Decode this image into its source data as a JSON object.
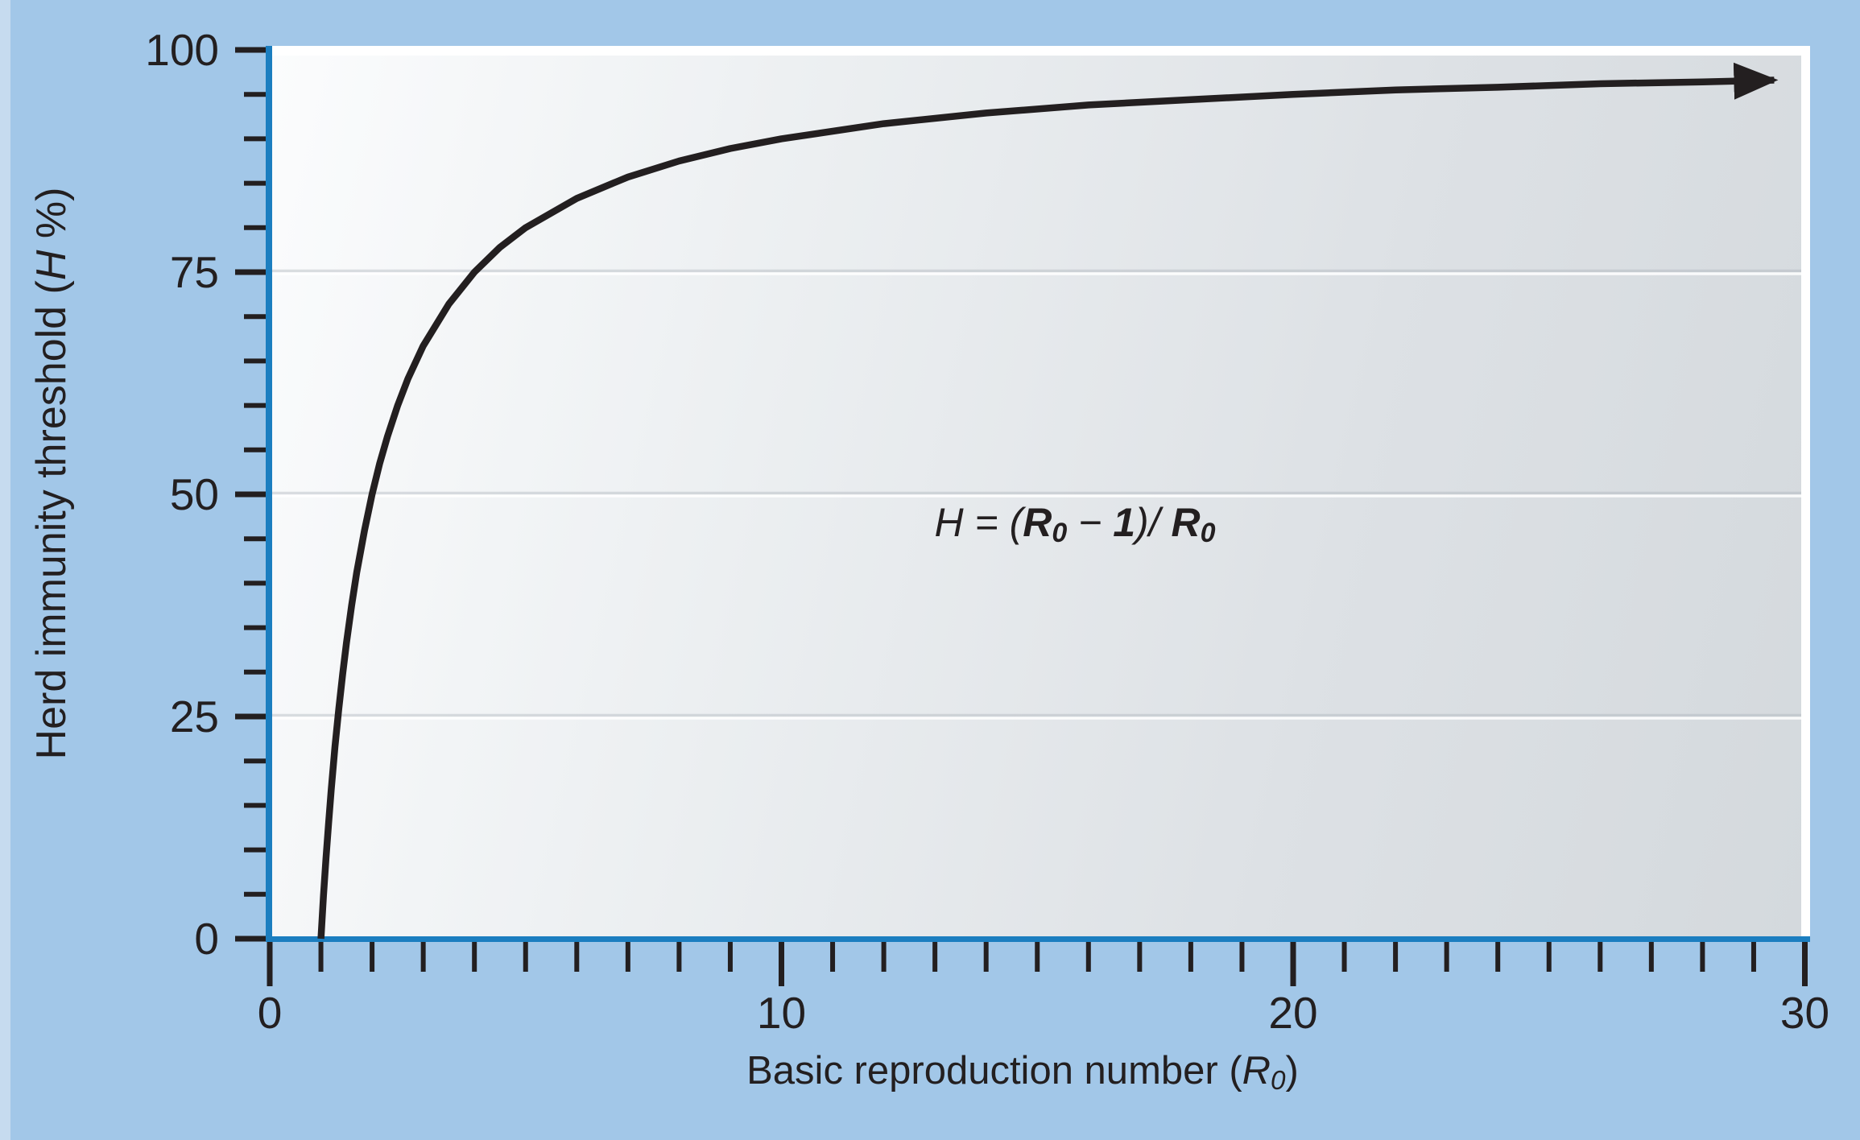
{
  "figure": {
    "background_color": "#a2c7e8",
    "left_edge_color": "#c6dbef",
    "axis_color": "#1b7ec0",
    "ink_color": "#231f20",
    "panel_frame_color": "#ffffff",
    "panel_gradient": [
      "#fbfcfd",
      "#edf0f2",
      "#dde1e5",
      "#d4d9dd"
    ]
  },
  "labels": {
    "y_title_prefix": "Herd immunity threshold (",
    "y_title_var": "H",
    "y_title_suffix": " %)",
    "x_title_prefix": "Basic reproduction number (",
    "x_title_var": "R",
    "x_title_sub": "0",
    "x_title_suffix": ")",
    "formula_h": "H",
    "formula_eq": " = (",
    "formula_r1": "R",
    "formula_sub1": "0",
    "formula_minus": " − ",
    "formula_one": "1",
    "formula_close": ")/ ",
    "formula_r2": "R",
    "formula_sub2": "0"
  },
  "chart_data": {
    "type": "line",
    "title": "",
    "xlabel": "Basic reproduction number (R0)",
    "ylabel": "Herd immunity threshold (H %)",
    "annotation": "H = (R0 − 1)/R0",
    "xlim": [
      0,
      30
    ],
    "ylim": [
      0,
      100
    ],
    "x_major_ticks": [
      0,
      10,
      20,
      30
    ],
    "x_minor_tick_step": 1,
    "y_major_ticks": [
      0,
      25,
      50,
      75,
      100
    ],
    "y_minor_tick_step": 5,
    "gridlines_y": [
      25,
      50,
      75
    ],
    "grid_on": true,
    "legend": "none",
    "series": [
      {
        "name": "Herd immunity threshold H = 100 × (R0 − 1)/R0",
        "arrow_end": true,
        "x": [
          1,
          1.05,
          1.1,
          1.15,
          1.2,
          1.275,
          1.35,
          1.425,
          1.5,
          1.6,
          1.7,
          1.85,
          2,
          2.15,
          2.3,
          2.5,
          2.7,
          3,
          3.5,
          4,
          4.5,
          5,
          6,
          7,
          8,
          9,
          10,
          12,
          14,
          16,
          18,
          20,
          22,
          24,
          26,
          28,
          29.4
        ],
        "y": [
          0,
          4.8,
          9.1,
          13,
          16.7,
          21.6,
          25.9,
          29.8,
          33.3,
          37.5,
          41.2,
          45.9,
          50,
          53.5,
          56.5,
          60,
          63,
          66.7,
          71.4,
          75,
          77.8,
          80,
          83.3,
          85.7,
          87.5,
          88.9,
          90,
          91.7,
          92.9,
          93.8,
          94.4,
          95,
          95.5,
          95.8,
          96.2,
          96.4,
          96.6
        ]
      }
    ]
  }
}
